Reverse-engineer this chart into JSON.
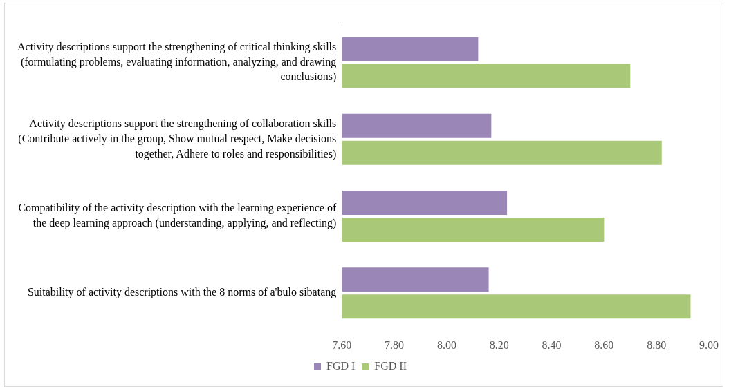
{
  "chart_data": {
    "type": "bar",
    "orientation": "horizontal",
    "categories": [
      "Activity descriptions support the strengthening of critical thinking skills (formulating problems, evaluating information, analyzing, and drawing conclusions)",
      "Activity descriptions support the strengthening of collaboration skills (Contribute actively in the group, Show mutual respect, Make decisions together, Adhere to roles and responsibilities)",
      "Compatibility of the activity description with the learning experience of the deep learning approach (understanding, applying, and reflecting)",
      "Suitability of activity descriptions with the 8 norms of a'bulo sibatang"
    ],
    "series": [
      {
        "name": "FGD I",
        "color": "#9b86b8",
        "values": [
          8.12,
          8.17,
          8.23,
          8.16
        ]
      },
      {
        "name": "FGD II",
        "color": "#aac978",
        "values": [
          8.7,
          8.82,
          8.6,
          8.93
        ]
      }
    ],
    "xlim": [
      7.6,
      9.0
    ],
    "xticks": [
      {
        "value": 7.6,
        "label": "7.60"
      },
      {
        "value": 7.8,
        "label": "7.80"
      },
      {
        "value": 8.0,
        "label": "8.00"
      },
      {
        "value": 8.2,
        "label": "8.20"
      },
      {
        "value": 8.4,
        "label": "8.40"
      },
      {
        "value": 8.6,
        "label": "8.60"
      },
      {
        "value": 8.8,
        "label": "8.80"
      },
      {
        "value": 9.0,
        "label": "9.00"
      }
    ],
    "grid": false,
    "legend": "bottom"
  }
}
